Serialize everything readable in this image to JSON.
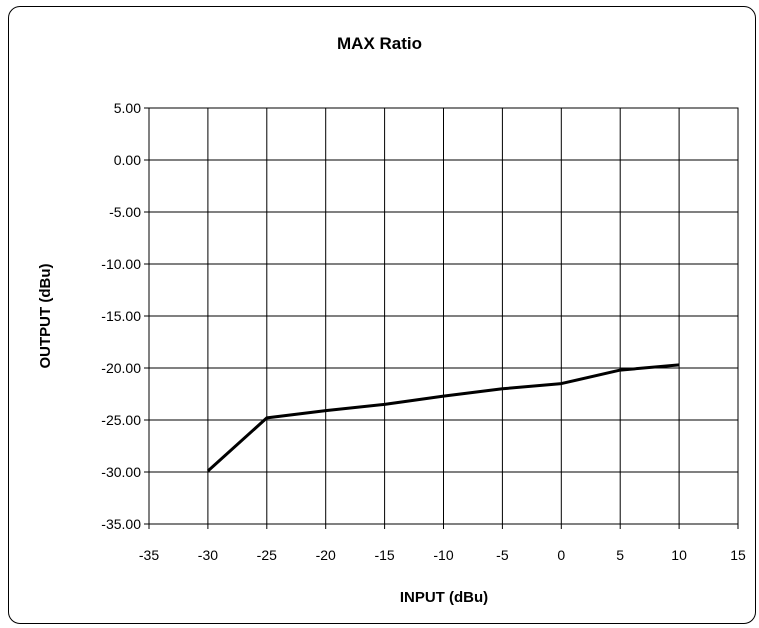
{
  "chart_data": {
    "type": "line",
    "title": "MAX Ratio",
    "xlabel": "INPUT (dBu)",
    "ylabel": "OUTPUT (dBu)",
    "xlim": [
      -35,
      15
    ],
    "ylim": [
      -35,
      5
    ],
    "x_ticks": [
      "-35",
      "-30",
      "-25",
      "-20",
      "-15",
      "-10",
      "-5",
      "0",
      "5",
      "10",
      "15"
    ],
    "y_ticks": [
      "5.00",
      "0.00",
      "-5.00",
      "-10.00",
      "-15.00",
      "-20.00",
      "-25.00",
      "-30.00",
      "-35.00"
    ],
    "grid": true,
    "legend": "none",
    "series": [
      {
        "x": [
          -30,
          -25,
          -20,
          -15,
          -10,
          -5,
          0,
          5,
          10
        ],
        "y": [
          -29.9,
          -24.8,
          -24.1,
          -23.5,
          -22.7,
          -22.0,
          -21.5,
          -20.2,
          -19.7
        ],
        "color": "#000000"
      }
    ]
  }
}
